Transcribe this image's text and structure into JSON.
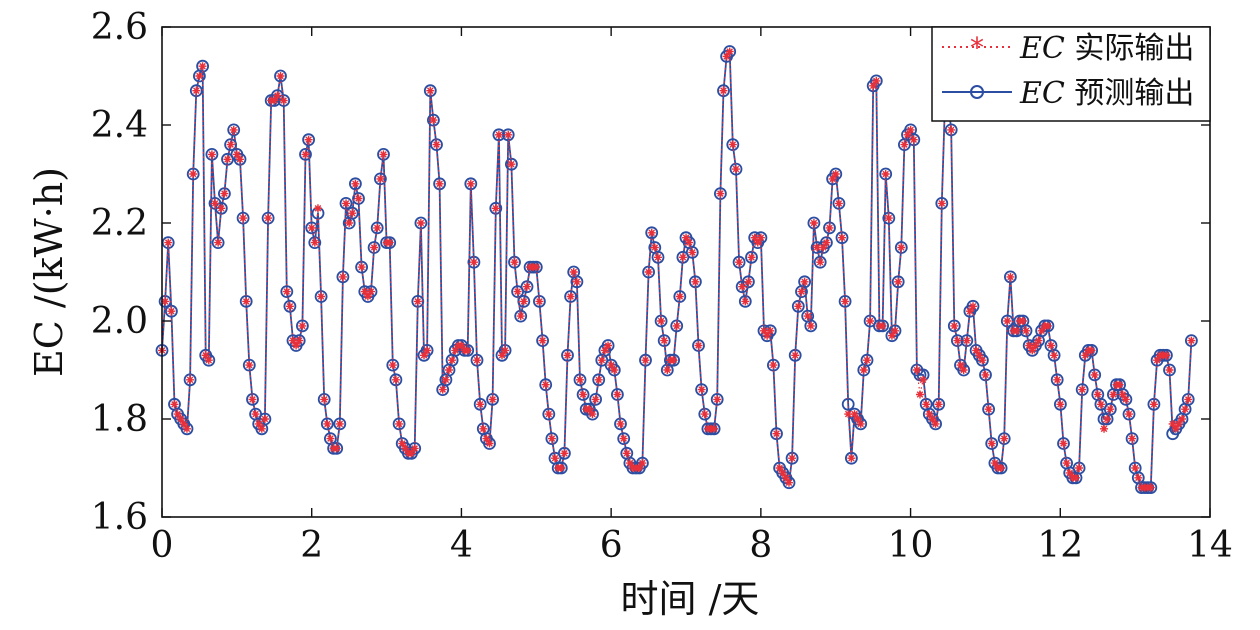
{
  "chart_data": {
    "type": "line",
    "title": "",
    "xlabel": "时间 /天",
    "ylabel": "EC /(kW·h)",
    "xlim": [
      0,
      14
    ],
    "ylim": [
      1.6,
      2.6
    ],
    "xticks": [
      0,
      2,
      4,
      6,
      8,
      10,
      12,
      14
    ],
    "yticks": [
      1.6,
      1.8,
      2.0,
      2.2,
      2.4,
      2.6
    ],
    "xtick_labels": [
      "0",
      "2",
      "4",
      "6",
      "8",
      "10",
      "12",
      "14"
    ],
    "ytick_labels": [
      "1.6",
      "1.8",
      "2.0",
      "2.2",
      "2.4",
      "2.6"
    ],
    "grid": false,
    "legend_position": "top-right",
    "legend": [
      {
        "italic": "EC",
        "text": " 实际输出",
        "color": "#e8303a",
        "style": "dotted-star"
      },
      {
        "italic": "EC",
        "text": " 预测输出",
        "color": "#2b4ea2",
        "style": "solid-circle"
      }
    ],
    "sample_step_days": 0.04167,
    "series": [
      {
        "name": "EC 实际输出",
        "color": "#e8303a",
        "values": [
          1.94,
          2.04,
          2.16,
          2.02,
          1.83,
          1.81,
          1.8,
          1.79,
          1.78,
          1.88,
          2.3,
          2.47,
          2.5,
          2.52,
          1.93,
          1.92,
          2.34,
          2.24,
          2.16,
          2.23,
          2.26,
          2.33,
          2.36,
          2.39,
          2.34,
          2.33,
          2.21,
          2.04,
          1.91,
          1.84,
          1.81,
          1.79,
          1.78,
          1.8,
          2.21,
          2.45,
          2.45,
          2.46,
          2.5,
          2.45,
          2.06,
          2.03,
          1.96,
          1.95,
          1.96,
          1.99,
          2.34,
          2.37,
          2.19,
          2.16,
          2.23,
          2.05,
          1.84,
          1.79,
          1.76,
          1.74,
          1.74,
          1.79,
          2.09,
          2.24,
          2.2,
          2.22,
          2.28,
          2.25,
          2.11,
          2.06,
          2.05,
          2.06,
          2.15,
          2.19,
          2.29,
          2.34,
          2.16,
          2.16,
          1.91,
          1.88,
          1.79,
          1.75,
          1.74,
          1.73,
          1.73,
          1.74,
          2.04,
          2.2,
          1.93,
          1.94,
          2.47,
          2.41,
          2.36,
          2.28,
          1.86,
          1.88,
          1.9,
          1.92,
          1.94,
          1.95,
          1.95,
          1.94,
          1.94,
          2.28,
          2.12,
          1.92,
          1.83,
          1.78,
          1.76,
          1.75,
          1.84,
          2.23,
          2.38,
          1.93,
          1.94,
          2.38,
          2.32,
          2.12,
          2.06,
          2.01,
          2.04,
          2.07,
          2.11,
          2.11,
          2.11,
          2.04,
          1.96,
          1.87,
          1.81,
          1.76,
          1.72,
          1.7,
          1.7,
          1.73,
          1.93,
          2.05,
          2.1,
          2.08,
          1.88,
          1.85,
          1.82,
          1.82,
          1.81,
          1.84,
          1.88,
          1.92,
          1.94,
          1.95,
          1.91,
          1.9,
          1.85,
          1.79,
          1.76,
          1.73,
          1.71,
          1.7,
          1.7,
          1.7,
          1.71,
          1.92,
          2.1,
          2.18,
          2.15,
          2.13,
          2.0,
          1.96,
          1.9,
          1.92,
          1.92,
          1.99,
          2.05,
          2.13,
          2.17,
          2.16,
          2.14,
          2.08,
          1.95,
          1.86,
          1.81,
          1.78,
          1.78,
          1.78,
          1.84,
          2.26,
          2.47,
          2.54,
          2.55,
          2.36,
          2.31,
          2.12,
          2.07,
          2.04,
          2.08,
          2.13,
          2.17,
          2.16,
          2.17,
          1.98,
          1.97,
          1.98,
          1.91,
          1.77,
          1.7,
          1.69,
          1.68,
          1.67,
          1.72,
          1.93,
          2.03,
          2.06,
          2.08,
          2.01,
          1.99,
          2.2,
          2.15,
          2.12,
          2.15,
          2.16,
          2.19,
          2.29,
          2.3,
          2.24,
          2.17,
          2.04,
          1.81,
          1.72,
          1.81,
          1.8,
          1.79,
          1.9,
          1.92,
          2.0,
          2.48,
          2.49,
          1.99,
          1.99,
          2.3,
          2.21,
          1.97,
          1.98,
          2.08,
          2.15,
          2.36,
          2.38,
          2.39,
          2.37,
          1.9,
          1.85,
          1.88,
          1.83,
          1.81,
          1.8,
          1.79,
          1.83,
          2.24,
          2.44,
          2.45,
          2.39,
          1.99,
          1.96,
          1.91,
          1.9,
          1.96,
          2.02,
          2.03,
          1.94,
          1.93,
          1.92,
          1.89,
          1.82,
          1.75,
          1.71,
          1.7,
          1.7,
          1.76,
          2.0,
          2.09,
          1.98,
          1.98,
          2.0,
          2.0,
          1.98,
          1.95,
          1.94,
          1.95,
          1.96,
          1.98,
          1.99,
          1.99,
          1.95,
          1.93,
          1.88,
          1.83,
          1.75,
          1.71,
          1.69,
          1.68,
          1.68,
          1.7,
          1.86,
          1.93,
          1.94,
          1.94,
          1.89,
          1.85,
          1.83,
          1.78,
          1.8,
          1.82,
          1.85,
          1.87,
          1.87,
          1.85,
          1.84,
          1.81,
          1.76,
          1.7,
          1.68,
          1.66,
          1.66,
          1.66,
          1.66,
          1.83,
          1.92,
          1.93,
          1.93,
          1.93,
          1.9,
          1.79,
          1.78,
          1.79,
          1.8,
          1.82,
          1.84,
          1.96
        ]
      },
      {
        "name": "EC 预测输出",
        "color": "#2b4ea2",
        "values": [
          1.94,
          2.04,
          2.16,
          2.02,
          1.83,
          1.81,
          1.8,
          1.79,
          1.78,
          1.88,
          2.3,
          2.47,
          2.5,
          2.52,
          1.93,
          1.92,
          2.34,
          2.24,
          2.16,
          2.23,
          2.26,
          2.33,
          2.36,
          2.39,
          2.34,
          2.33,
          2.21,
          2.04,
          1.91,
          1.84,
          1.81,
          1.79,
          1.78,
          1.8,
          2.21,
          2.45,
          2.45,
          2.46,
          2.5,
          2.45,
          2.06,
          2.03,
          1.96,
          1.95,
          1.96,
          1.99,
          2.34,
          2.37,
          2.19,
          2.16,
          2.22,
          2.05,
          1.84,
          1.79,
          1.76,
          1.74,
          1.74,
          1.79,
          2.09,
          2.24,
          2.2,
          2.22,
          2.28,
          2.25,
          2.11,
          2.06,
          2.05,
          2.06,
          2.15,
          2.19,
          2.29,
          2.34,
          2.16,
          2.16,
          1.91,
          1.88,
          1.79,
          1.75,
          1.74,
          1.73,
          1.73,
          1.74,
          2.04,
          2.2,
          1.93,
          1.94,
          2.47,
          2.41,
          2.36,
          2.28,
          1.86,
          1.88,
          1.9,
          1.92,
          1.94,
          1.95,
          1.95,
          1.94,
          1.94,
          2.28,
          2.12,
          1.92,
          1.83,
          1.78,
          1.76,
          1.75,
          1.84,
          2.23,
          2.38,
          1.93,
          1.94,
          2.38,
          2.32,
          2.12,
          2.06,
          2.01,
          2.04,
          2.07,
          2.11,
          2.11,
          2.11,
          2.04,
          1.96,
          1.87,
          1.81,
          1.76,
          1.72,
          1.7,
          1.7,
          1.73,
          1.93,
          2.05,
          2.1,
          2.08,
          1.88,
          1.85,
          1.82,
          1.82,
          1.81,
          1.84,
          1.88,
          1.92,
          1.94,
          1.95,
          1.91,
          1.9,
          1.85,
          1.79,
          1.76,
          1.73,
          1.71,
          1.7,
          1.7,
          1.7,
          1.71,
          1.92,
          2.1,
          2.18,
          2.15,
          2.13,
          2.0,
          1.96,
          1.9,
          1.92,
          1.92,
          1.99,
          2.05,
          2.13,
          2.17,
          2.16,
          2.14,
          2.08,
          1.95,
          1.86,
          1.81,
          1.78,
          1.78,
          1.78,
          1.84,
          2.26,
          2.47,
          2.54,
          2.55,
          2.36,
          2.31,
          2.12,
          2.07,
          2.04,
          2.08,
          2.13,
          2.17,
          2.16,
          2.17,
          1.98,
          1.97,
          1.98,
          1.91,
          1.77,
          1.7,
          1.69,
          1.68,
          1.67,
          1.72,
          1.93,
          2.03,
          2.06,
          2.08,
          2.01,
          1.99,
          2.2,
          2.15,
          2.12,
          2.15,
          2.16,
          2.19,
          2.29,
          2.3,
          2.24,
          2.17,
          2.04,
          1.83,
          1.72,
          1.81,
          1.8,
          1.79,
          1.9,
          1.92,
          2.0,
          2.48,
          2.49,
          1.99,
          1.99,
          2.3,
          2.21,
          1.97,
          1.98,
          2.08,
          2.15,
          2.36,
          2.38,
          2.39,
          2.37,
          1.9,
          1.89,
          1.89,
          1.83,
          1.81,
          1.8,
          1.79,
          1.83,
          2.24,
          2.44,
          2.45,
          2.39,
          1.99,
          1.96,
          1.91,
          1.9,
          1.96,
          2.02,
          2.03,
          1.94,
          1.93,
          1.92,
          1.89,
          1.82,
          1.75,
          1.71,
          1.7,
          1.7,
          1.76,
          2.0,
          2.09,
          1.98,
          1.98,
          2.0,
          2.0,
          1.98,
          1.95,
          1.94,
          1.95,
          1.96,
          1.98,
          1.99,
          1.99,
          1.95,
          1.93,
          1.88,
          1.83,
          1.75,
          1.71,
          1.69,
          1.68,
          1.68,
          1.7,
          1.86,
          1.93,
          1.94,
          1.94,
          1.89,
          1.85,
          1.83,
          1.8,
          1.8,
          1.82,
          1.85,
          1.87,
          1.87,
          1.85,
          1.84,
          1.81,
          1.76,
          1.7,
          1.68,
          1.66,
          1.66,
          1.66,
          1.66,
          1.83,
          1.92,
          1.93,
          1.93,
          1.93,
          1.9,
          1.77,
          1.78,
          1.79,
          1.8,
          1.82,
          1.84,
          1.96
        ]
      }
    ]
  }
}
